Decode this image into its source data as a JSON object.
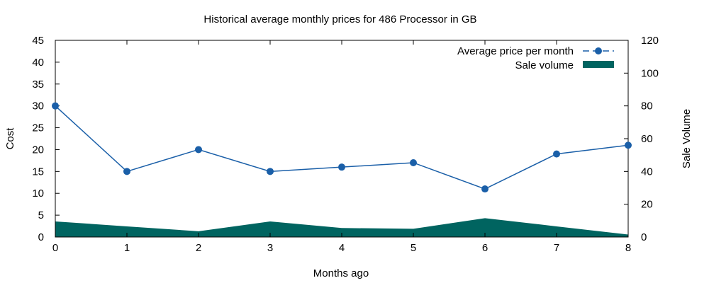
{
  "chart_data": {
    "type": "line",
    "title": "Historical average monthly prices for 486 Processor in GB",
    "xlabel": "Months ago",
    "ylabel": "Cost",
    "y2label": "Sale Volume",
    "x": [
      0,
      1,
      2,
      3,
      4,
      5,
      6,
      7,
      8
    ],
    "xlim": [
      0,
      8
    ],
    "ylim": [
      0,
      45
    ],
    "y2lim": [
      0,
      120
    ],
    "xticks": [
      "0",
      "1",
      "2",
      "3",
      "4",
      "5",
      "6",
      "7",
      "8"
    ],
    "yticks": [
      "0",
      "5",
      "10",
      "15",
      "20",
      "25",
      "30",
      "35",
      "40",
      "45"
    ],
    "y2ticks": [
      "0",
      "20",
      "40",
      "60",
      "80",
      "100",
      "120"
    ],
    "grid": false,
    "legend_position": "top-right",
    "series": [
      {
        "name": "Average price per month",
        "type": "line",
        "axis": "left",
        "color": "#1a5fa8",
        "values": [
          30,
          15,
          20,
          15,
          16,
          17,
          11,
          19,
          21
        ]
      },
      {
        "name": "Sale volume",
        "type": "area",
        "axis": "right",
        "color": "#006460",
        "values": [
          9.5,
          6.5,
          3.5,
          9.5,
          5.5,
          5,
          11.5,
          6.5,
          1.5
        ]
      }
    ]
  }
}
